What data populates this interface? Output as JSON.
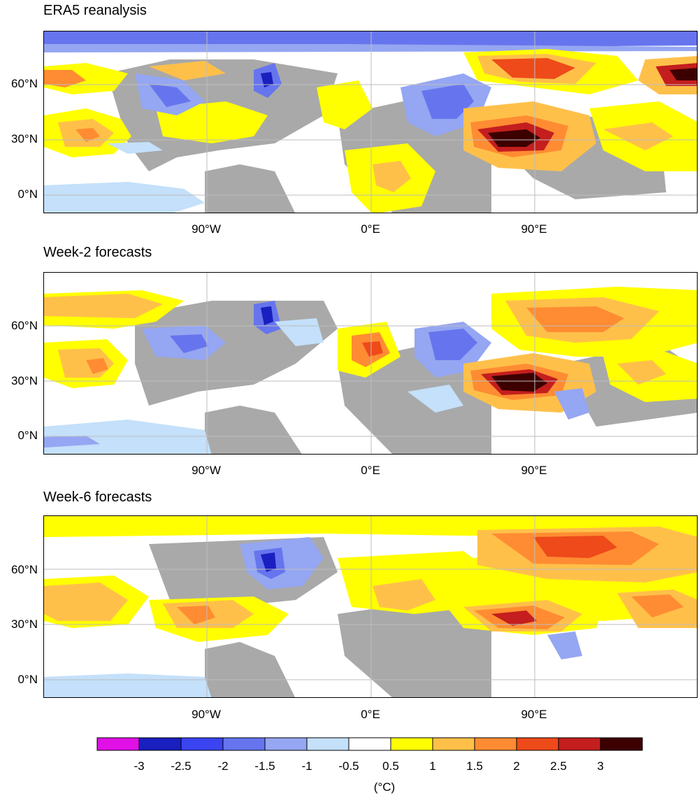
{
  "panels": [
    {
      "title": "ERA5 reanalysis"
    },
    {
      "title": "Week-2 forecasts"
    },
    {
      "title": "Week-6 forecasts"
    }
  ],
  "lat_labels": [
    "60°N",
    "30°N",
    "0°N"
  ],
  "lon_labels": [
    "90°W",
    "0°E",
    "90°E"
  ],
  "colorbar": {
    "colors": [
      "#e010e6",
      "#1a1fbf",
      "#3a44f0",
      "#6675ee",
      "#95a6f2",
      "#c4e0fa",
      "#ffffff",
      "#ffff00",
      "#ffc04a",
      "#ff8c32",
      "#ee4a1a",
      "#c41e1e",
      "#3d0000"
    ],
    "ticks": [
      "-3",
      "-2.5",
      "-2",
      "-1.5",
      "-1",
      "-0.5",
      "0.5",
      "1",
      "1.5",
      "2",
      "2.5",
      "3"
    ],
    "unit": "(°C)"
  },
  "colors": {
    "land_gray": "#a9a9a9",
    "ocean_white": "#ffffff"
  }
}
